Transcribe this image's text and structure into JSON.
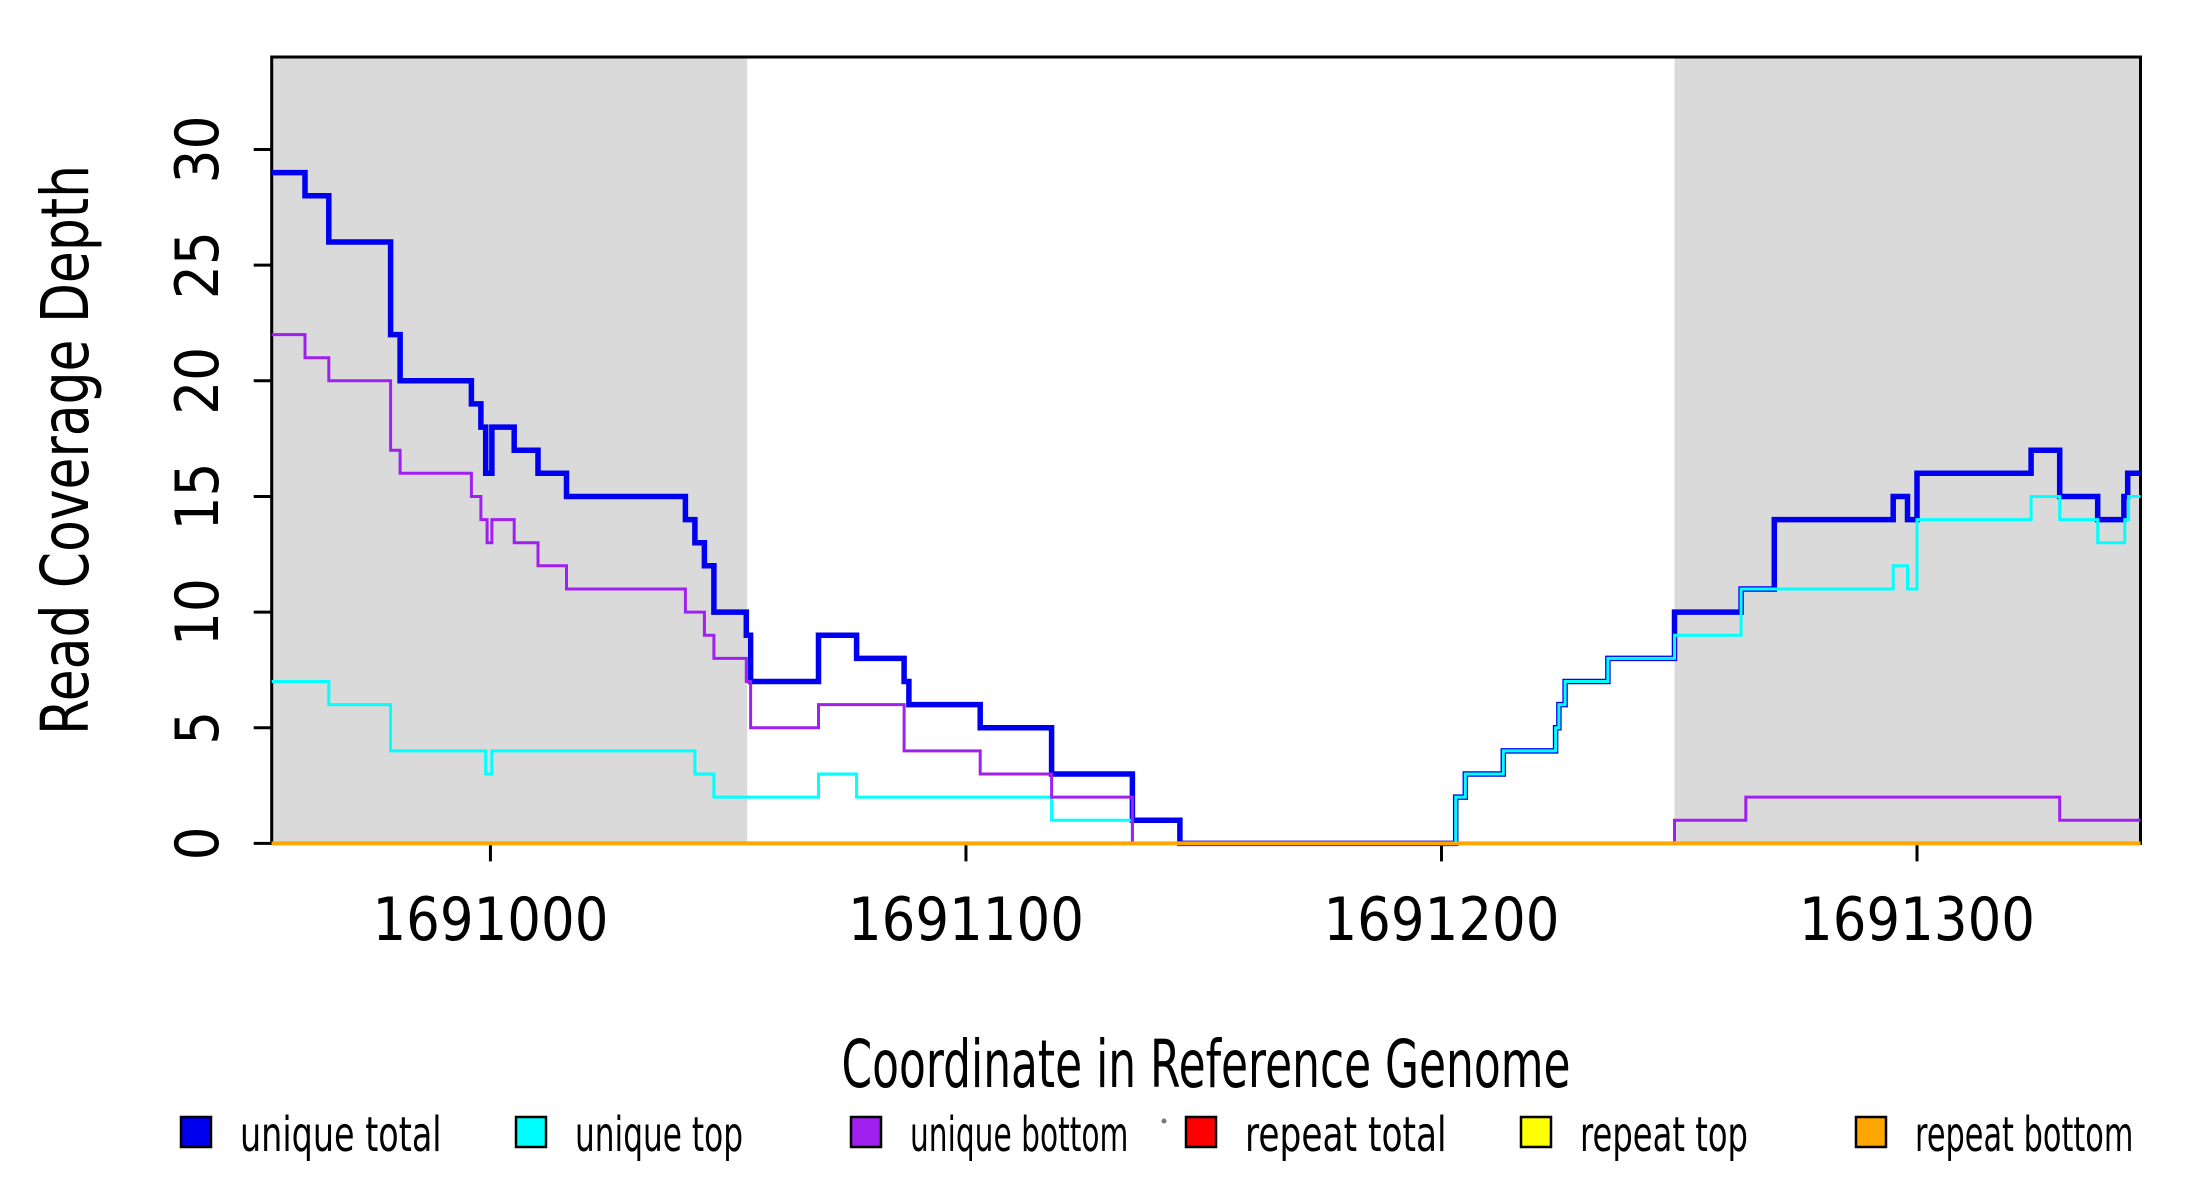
{
  "chart_data": {
    "type": "line",
    "step": true,
    "title": "",
    "xlabel": "Coordinate in Reference Genome",
    "ylabel": "Read Coverage Depth",
    "xlim": [
      1690954,
      1691347
    ],
    "ylim": [
      0,
      34
    ],
    "x_ticks": [
      "1691000",
      "1691100",
      "1691200",
      "1691300"
    ],
    "x_tick_values": [
      1691000,
      1691100,
      1691200,
      1691300
    ],
    "y_ticks": [
      "0",
      "5",
      "10",
      "15",
      "20",
      "25",
      "30"
    ],
    "y_tick_values": [
      0,
      5,
      10,
      15,
      20,
      25,
      30
    ],
    "grid": false,
    "shade_color": "#DADADA",
    "shaded_x_ranges": [
      [
        1690954,
        1691054
      ],
      [
        1691249,
        1691347
      ]
    ],
    "series": [
      {
        "name": "unique total",
        "color": "#0000EE",
        "line_width": 5.5,
        "steps": [
          [
            1690954,
            29
          ],
          [
            1690961,
            28
          ],
          [
            1690966,
            26
          ],
          [
            1690979,
            22
          ],
          [
            1690981,
            20
          ],
          [
            1690996,
            19
          ],
          [
            1690998,
            18
          ],
          [
            1690999,
            16
          ],
          [
            1691000.3,
            18
          ],
          [
            1691005,
            17
          ],
          [
            1691010,
            16
          ],
          [
            1691016,
            15
          ],
          [
            1691041,
            14
          ],
          [
            1691043,
            13
          ],
          [
            1691045,
            12
          ],
          [
            1691047,
            10
          ],
          [
            1691053.8,
            9
          ],
          [
            1691054.7,
            7
          ],
          [
            1691069,
            9
          ],
          [
            1691077,
            8
          ],
          [
            1691087,
            7
          ],
          [
            1691088,
            6
          ],
          [
            1691103,
            5
          ],
          [
            1691118,
            3
          ],
          [
            1691135,
            1
          ],
          [
            1691145,
            0
          ],
          [
            1691203,
            2
          ],
          [
            1691205,
            3
          ],
          [
            1691213,
            4
          ],
          [
            1691224,
            5
          ],
          [
            1691224.7,
            6
          ],
          [
            1691226,
            7
          ],
          [
            1691235,
            8
          ],
          [
            1691249,
            10
          ],
          [
            1691263,
            11
          ],
          [
            1691270,
            14
          ],
          [
            1691295,
            15
          ],
          [
            1691298,
            14
          ],
          [
            1691300,
            16
          ],
          [
            1691324,
            17
          ],
          [
            1691330,
            15
          ],
          [
            1691338,
            14
          ],
          [
            1691343.5,
            15
          ],
          [
            1691344.3,
            16
          ]
        ]
      },
      {
        "name": "unique top",
        "color": "#00FFFF",
        "line_width": 3,
        "steps": [
          [
            1690954,
            7
          ],
          [
            1690966,
            6
          ],
          [
            1690979,
            4
          ],
          [
            1690999,
            3
          ],
          [
            1691000.3,
            4
          ],
          [
            1691043,
            3
          ],
          [
            1691047,
            2
          ],
          [
            1691069,
            3
          ],
          [
            1691077,
            2
          ],
          [
            1691118,
            1
          ],
          [
            1691135,
            0
          ],
          [
            1691203,
            2
          ],
          [
            1691205,
            3
          ],
          [
            1691213,
            4
          ],
          [
            1691224,
            5
          ],
          [
            1691224.7,
            6
          ],
          [
            1691226,
            7
          ],
          [
            1691235,
            8
          ],
          [
            1691249,
            9
          ],
          [
            1691263,
            11
          ],
          [
            1691295,
            12
          ],
          [
            1691298,
            11
          ],
          [
            1691300,
            14
          ],
          [
            1691324,
            15
          ],
          [
            1691330,
            14
          ],
          [
            1691338,
            13
          ],
          [
            1691343.7,
            14
          ],
          [
            1691344.5,
            15
          ]
        ]
      },
      {
        "name": "unique bottom",
        "color": "#A020F0",
        "line_width": 3,
        "steps": [
          [
            1690954,
            22
          ],
          [
            1690961,
            21
          ],
          [
            1690966,
            20
          ],
          [
            1690979,
            17
          ],
          [
            1690981,
            16
          ],
          [
            1690996,
            15
          ],
          [
            1690998,
            14
          ],
          [
            1690999.3,
            13
          ],
          [
            1691000.3,
            14
          ],
          [
            1691005,
            13
          ],
          [
            1691010,
            12
          ],
          [
            1691016,
            11
          ],
          [
            1691041,
            10
          ],
          [
            1691045,
            9
          ],
          [
            1691047,
            8
          ],
          [
            1691053.8,
            7
          ],
          [
            1691054.7,
            5
          ],
          [
            1691069,
            6
          ],
          [
            1691087,
            4
          ],
          [
            1691103,
            3
          ],
          [
            1691118,
            2
          ],
          [
            1691135,
            0
          ],
          [
            1691249,
            1
          ],
          [
            1691264,
            2
          ],
          [
            1691330,
            1
          ]
        ]
      },
      {
        "name": "repeat total",
        "color": "#FF0000",
        "line_width": 2.5,
        "steps": [
          [
            1690954,
            0
          ]
        ]
      },
      {
        "name": "repeat top",
        "color": "#FFFF00",
        "line_width": 2.5,
        "steps": [
          [
            1690954,
            0
          ]
        ]
      },
      {
        "name": "repeat bottom",
        "color": "#FFA500",
        "line_width": 4,
        "steps": [
          [
            1690954,
            0
          ]
        ]
      }
    ]
  },
  "legend": {
    "items": [
      {
        "label": "unique total",
        "color": "#0000EE"
      },
      {
        "label": "unique top",
        "color": "#00FFFF"
      },
      {
        "label": "unique bottom",
        "color": "#A020F0"
      },
      {
        "label": "repeat total",
        "color": "#FF0000"
      },
      {
        "label": "repeat top",
        "color": "#FFFF00"
      },
      {
        "label": "repeat bottom",
        "color": "#FFA500"
      }
    ]
  },
  "frame": {
    "color": "#000000",
    "tick_color": "#000000"
  }
}
